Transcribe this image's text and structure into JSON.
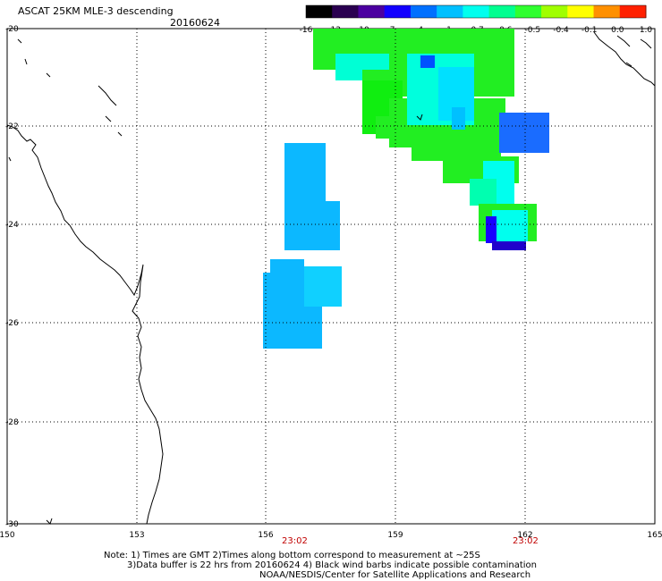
{
  "header": {
    "title": "ASCAT 25KM MLE-3 descending",
    "date": "20160624"
  },
  "colorbar": {
    "labels": [
      "-16",
      "-13",
      "-10",
      "-7",
      "-4",
      "-1",
      "-0.7",
      "-0.6",
      "-0.5",
      "-0.4",
      "-0.1",
      "0.0",
      "1.0"
    ],
    "colors": [
      "#000000",
      "#2a0050",
      "#4b00a0",
      "#1200ff",
      "#0070ff",
      "#00c0ff",
      "#00ffee",
      "#00ff90",
      "#30ff30",
      "#a0ff00",
      "#ffff00",
      "#ff9000",
      "#ff2000"
    ]
  },
  "axes": {
    "lon_ticks": [
      "150",
      "153",
      "156",
      "159",
      "162",
      "165"
    ],
    "lat_ticks": [
      "-20",
      "-22",
      "-24",
      "-26",
      "-28",
      "-30"
    ],
    "time_labels": [
      "23:02",
      "23:02"
    ]
  },
  "footer": {
    "line1": "Note: 1) Times are GMT 2)Times along bottom correspond to measurement at ~25S",
    "line2": "3)Data buffer is 22 hrs from 20160624 4) Black wind barbs indicate possible contamination",
    "line3": "NOAA/NESDIS/Center for Satellite Applications and Research"
  }
}
